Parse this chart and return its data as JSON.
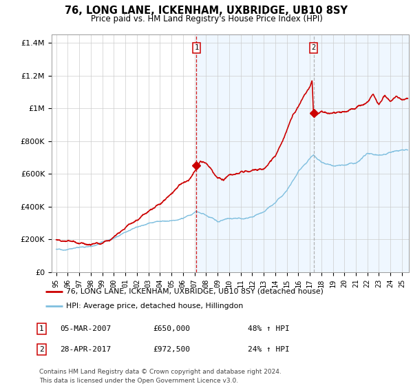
{
  "title": "76, LONG LANE, ICKENHAM, UXBRIDGE, UB10 8SY",
  "subtitle": "Price paid vs. HM Land Registry's House Price Index (HPI)",
  "ylabel_ticks": [
    "£0",
    "£200K",
    "£400K",
    "£600K",
    "£800K",
    "£1M",
    "£1.2M",
    "£1.4M"
  ],
  "ytick_values": [
    0,
    200000,
    400000,
    600000,
    800000,
    1000000,
    1200000,
    1400000
  ],
  "ylim": [
    0,
    1450000
  ],
  "sale1_x": 2007.17,
  "sale1_price": 650000,
  "sale2_x": 2017.33,
  "sale2_price": 972500,
  "legend_line1": "76, LONG LANE, ICKENHAM, UXBRIDGE, UB10 8SY (detached house)",
  "legend_line2": "HPI: Average price, detached house, Hillingdon",
  "footnote_line1": "Contains HM Land Registry data © Crown copyright and database right 2024.",
  "footnote_line2": "This data is licensed under the Open Government Licence v3.0.",
  "hpi_color": "#7fbfdf",
  "price_color": "#cc0000",
  "sale1_vline_color": "#cc0000",
  "sale2_vline_color": "#aaaaaa",
  "bg_span_color": "#ddeeff",
  "bg_span_alpha": 0.45
}
